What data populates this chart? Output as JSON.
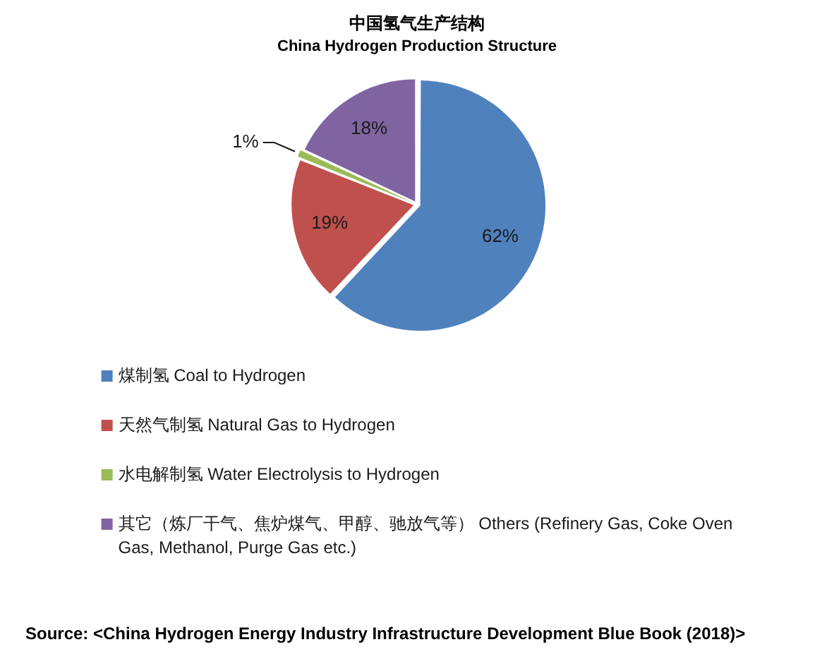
{
  "chart_data": {
    "type": "pie",
    "title": "中国氢气生产结构",
    "subtitle": "China Hydrogen Production Structure",
    "categories": [
      "煤制氢 Coal to Hydrogen",
      "天然气制氢 Natural Gas to Hydrogen",
      "水电解制氢 Water Electrolysis to Hydrogen",
      "其它（炼厂干气、焦炉煤气、甲醇、驰放气等） Others (Refinery Gas, Coke Oven Gas, Methanol, Purge Gas etc.)"
    ],
    "values": [
      62,
      19,
      1,
      18
    ],
    "colors": [
      "#4f81bd",
      "#c0504d",
      "#9bbb59",
      "#8064a2"
    ],
    "value_labels": [
      "62%",
      "19%",
      "1%",
      "18%"
    ],
    "legend": "bottom",
    "annotations": [
      "Source: <China Hydrogen Energy Industry Infrastructure Development Blue Book (2018)>"
    ]
  }
}
